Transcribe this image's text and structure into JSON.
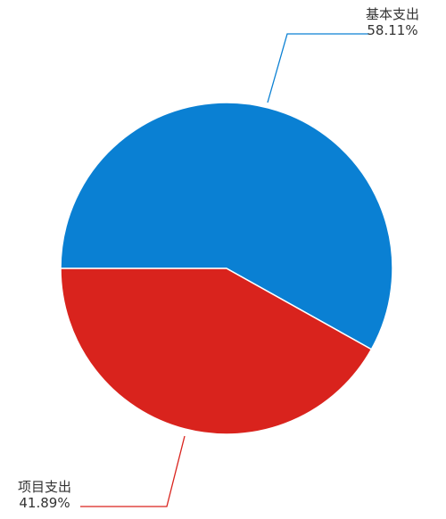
{
  "chart_data": {
    "type": "pie",
    "title": "",
    "slices": [
      {
        "name": "基本支出",
        "percent_label": "58.11%",
        "value": 58.11,
        "color": "#0A80D3"
      },
      {
        "name": "项目支出",
        "percent_label": "41.89%",
        "value": 41.89,
        "color": "#D9231D"
      }
    ]
  }
}
